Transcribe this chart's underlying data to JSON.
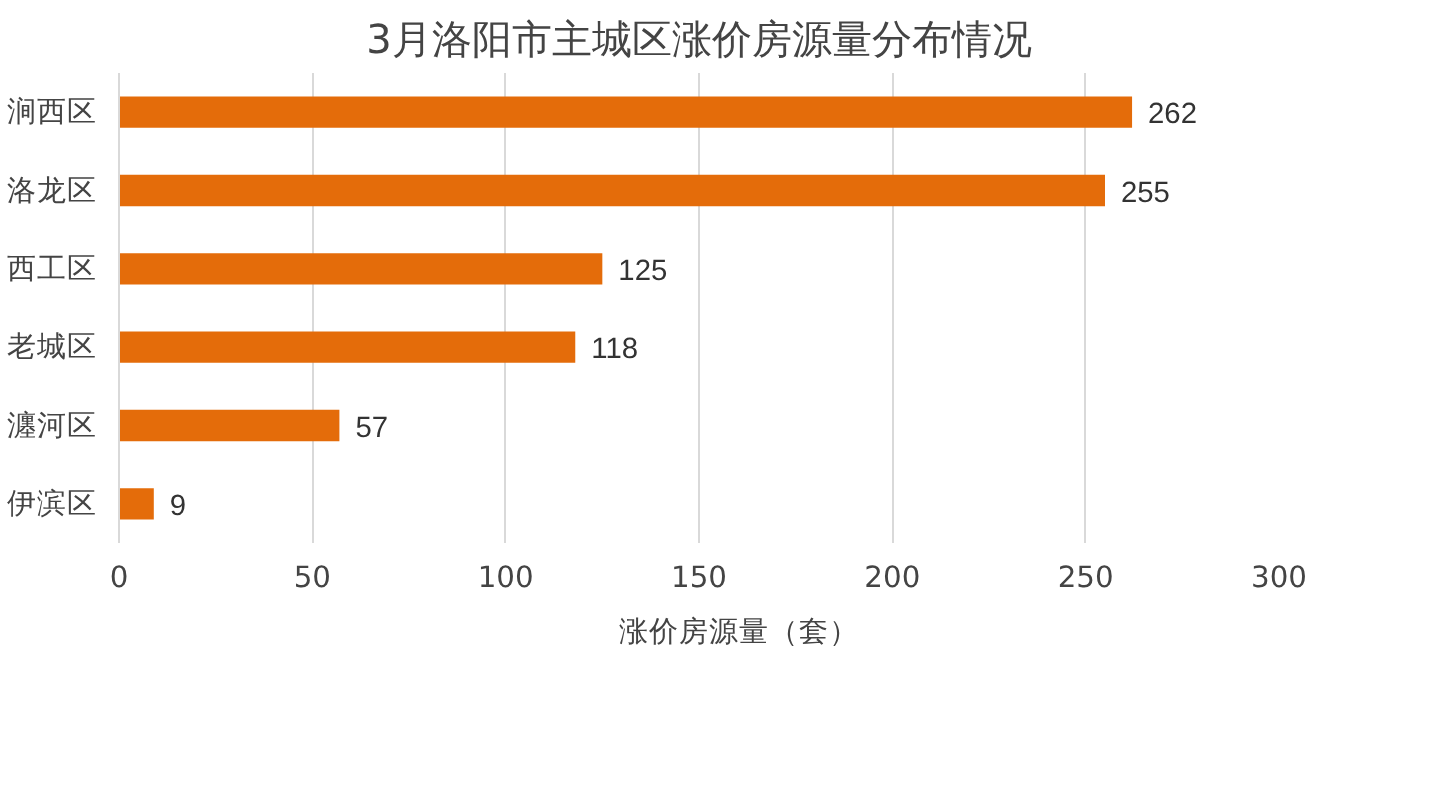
{
  "chart_data": {
    "type": "bar",
    "orientation": "horizontal",
    "title": "3月洛阳市主城区涨价房源量分布情况",
    "categories": [
      "涧西区",
      "洛龙区",
      "西工区",
      "老城区",
      "瀍河区",
      "伊滨区"
    ],
    "series": [
      {
        "name": "涨价房源量（套）",
        "color": "#e46c0a",
        "values": [
          262,
          255,
          125,
          118,
          57,
          9
        ]
      }
    ],
    "xlim": [
      0,
      300
    ],
    "xticks": [
      0,
      50,
      100,
      150,
      200,
      250,
      300
    ],
    "grid": "x",
    "legend": "bottom",
    "data_labels": true
  }
}
